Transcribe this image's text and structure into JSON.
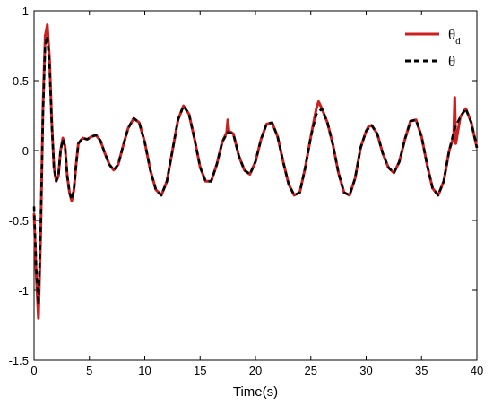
{
  "chart_data": {
    "type": "line",
    "title": "",
    "xlabel": "Time(s)",
    "ylabel": "",
    "xlim": [
      0,
      40
    ],
    "ylim": [
      -1.5,
      1
    ],
    "x_ticks": [
      "0",
      "5",
      "10",
      "15",
      "20",
      "25",
      "30",
      "35",
      "40"
    ],
    "y_ticks": [
      "1",
      "0.5",
      "0",
      "-0.5",
      "-1",
      "-1.5"
    ],
    "grid": false,
    "legend_position": "top-right",
    "series": [
      {
        "name": "θd",
        "legend_main": "θ",
        "legend_sub": "d",
        "color": "#cc1f1f",
        "style": "solid",
        "points": [
          [
            0,
            -0.45
          ],
          [
            0.2,
            -0.9
          ],
          [
            0.4,
            -1.2
          ],
          [
            0.6,
            -0.6
          ],
          [
            0.8,
            0.3
          ],
          [
            1.0,
            0.82
          ],
          [
            1.2,
            0.9
          ],
          [
            1.4,
            0.65
          ],
          [
            1.6,
            0.2
          ],
          [
            1.8,
            -0.12
          ],
          [
            2.0,
            -0.22
          ],
          [
            2.2,
            -0.18
          ],
          [
            2.4,
            0.0
          ],
          [
            2.6,
            0.09
          ],
          [
            2.8,
            0.03
          ],
          [
            3.0,
            -0.18
          ],
          [
            3.2,
            -0.3
          ],
          [
            3.4,
            -0.36
          ],
          [
            3.6,
            -0.28
          ],
          [
            3.8,
            -0.1
          ],
          [
            4.0,
            0.05
          ],
          [
            4.4,
            0.09
          ],
          [
            4.8,
            0.08
          ],
          [
            5.2,
            0.1
          ],
          [
            5.6,
            0.11
          ],
          [
            6.0,
            0.07
          ],
          [
            6.4,
            -0.02
          ],
          [
            6.8,
            -0.1
          ],
          [
            7.2,
            -0.14
          ],
          [
            7.6,
            -0.1
          ],
          [
            8.0,
            0.02
          ],
          [
            8.5,
            0.16
          ],
          [
            9.0,
            0.23
          ],
          [
            9.5,
            0.2
          ],
          [
            10.0,
            0.06
          ],
          [
            10.5,
            -0.14
          ],
          [
            11.0,
            -0.28
          ],
          [
            11.5,
            -0.32
          ],
          [
            12.0,
            -0.22
          ],
          [
            12.5,
            0.0
          ],
          [
            13.0,
            0.22
          ],
          [
            13.5,
            0.32
          ],
          [
            14.0,
            0.26
          ],
          [
            14.5,
            0.08
          ],
          [
            15.0,
            -0.12
          ],
          [
            15.5,
            -0.22
          ],
          [
            16.0,
            -0.22
          ],
          [
            16.5,
            -0.1
          ],
          [
            17.0,
            0.06
          ],
          [
            17.4,
            0.13
          ],
          [
            17.5,
            0.22
          ],
          [
            17.6,
            0.14
          ],
          [
            18.0,
            0.12
          ],
          [
            18.5,
            -0.04
          ],
          [
            19.0,
            -0.14
          ],
          [
            19.5,
            -0.17
          ],
          [
            20.0,
            -0.08
          ],
          [
            20.5,
            0.08
          ],
          [
            21.0,
            0.19
          ],
          [
            21.5,
            0.2
          ],
          [
            22.0,
            0.1
          ],
          [
            22.5,
            -0.08
          ],
          [
            23.0,
            -0.24
          ],
          [
            23.5,
            -0.32
          ],
          [
            24.0,
            -0.3
          ],
          [
            24.5,
            -0.12
          ],
          [
            25.0,
            0.1
          ],
          [
            25.5,
            0.3
          ],
          [
            25.7,
            0.35
          ],
          [
            26.0,
            0.3
          ],
          [
            26.5,
            0.2
          ],
          [
            27.0,
            0.04
          ],
          [
            27.5,
            -0.16
          ],
          [
            28.0,
            -0.3
          ],
          [
            28.5,
            -0.32
          ],
          [
            29.0,
            -0.2
          ],
          [
            29.5,
            0.02
          ],
          [
            30.0,
            0.14
          ],
          [
            30.2,
            0.17
          ],
          [
            30.5,
            0.18
          ],
          [
            31.0,
            0.12
          ],
          [
            31.5,
            -0.02
          ],
          [
            32.0,
            -0.12
          ],
          [
            32.5,
            -0.16
          ],
          [
            33.0,
            -0.08
          ],
          [
            33.5,
            0.08
          ],
          [
            34.0,
            0.21
          ],
          [
            34.5,
            0.22
          ],
          [
            35.0,
            0.1
          ],
          [
            35.5,
            -0.1
          ],
          [
            36.0,
            -0.27
          ],
          [
            36.5,
            -0.32
          ],
          [
            37.0,
            -0.22
          ],
          [
            37.5,
            0.0
          ],
          [
            37.9,
            0.1
          ],
          [
            38.0,
            0.38
          ],
          [
            38.1,
            0.05
          ],
          [
            38.5,
            0.24
          ],
          [
            39.0,
            0.3
          ],
          [
            39.5,
            0.2
          ],
          [
            40.0,
            0.02
          ]
        ]
      },
      {
        "name": "θ",
        "color": "#000000",
        "style": "dashed",
        "points": [
          [
            0,
            -0.4
          ],
          [
            0.2,
            -0.85
          ],
          [
            0.4,
            -1.1
          ],
          [
            0.6,
            -0.55
          ],
          [
            0.8,
            0.25
          ],
          [
            1.0,
            0.75
          ],
          [
            1.2,
            0.82
          ],
          [
            1.4,
            0.6
          ],
          [
            1.6,
            0.18
          ],
          [
            1.8,
            -0.12
          ],
          [
            2.0,
            -0.22
          ],
          [
            2.2,
            -0.18
          ],
          [
            2.4,
            0.0
          ],
          [
            2.6,
            0.08
          ],
          [
            2.8,
            0.03
          ],
          [
            3.0,
            -0.18
          ],
          [
            3.2,
            -0.3
          ],
          [
            3.4,
            -0.35
          ],
          [
            3.6,
            -0.28
          ],
          [
            3.8,
            -0.1
          ],
          [
            4.0,
            0.05
          ],
          [
            4.4,
            0.09
          ],
          [
            4.8,
            0.08
          ],
          [
            5.2,
            0.1
          ],
          [
            5.6,
            0.11
          ],
          [
            6.0,
            0.07
          ],
          [
            6.4,
            -0.02
          ],
          [
            6.8,
            -0.1
          ],
          [
            7.2,
            -0.14
          ],
          [
            7.6,
            -0.1
          ],
          [
            8.0,
            0.02
          ],
          [
            8.5,
            0.16
          ],
          [
            9.0,
            0.23
          ],
          [
            9.5,
            0.2
          ],
          [
            10.0,
            0.06
          ],
          [
            10.5,
            -0.14
          ],
          [
            11.0,
            -0.28
          ],
          [
            11.5,
            -0.32
          ],
          [
            12.0,
            -0.22
          ],
          [
            12.5,
            0.0
          ],
          [
            13.0,
            0.22
          ],
          [
            13.5,
            0.32
          ],
          [
            14.0,
            0.26
          ],
          [
            14.5,
            0.08
          ],
          [
            15.0,
            -0.12
          ],
          [
            15.5,
            -0.22
          ],
          [
            16.0,
            -0.22
          ],
          [
            16.5,
            -0.1
          ],
          [
            17.0,
            0.06
          ],
          [
            17.5,
            0.13
          ],
          [
            18.0,
            0.12
          ],
          [
            18.5,
            -0.04
          ],
          [
            19.0,
            -0.14
          ],
          [
            19.5,
            -0.17
          ],
          [
            20.0,
            -0.08
          ],
          [
            20.5,
            0.08
          ],
          [
            21.0,
            0.19
          ],
          [
            21.5,
            0.2
          ],
          [
            22.0,
            0.1
          ],
          [
            22.5,
            -0.08
          ],
          [
            23.0,
            -0.24
          ],
          [
            23.5,
            -0.32
          ],
          [
            24.0,
            -0.3
          ],
          [
            24.5,
            -0.12
          ],
          [
            25.0,
            0.1
          ],
          [
            25.5,
            0.26
          ],
          [
            26.0,
            0.3
          ],
          [
            26.5,
            0.2
          ],
          [
            27.0,
            0.04
          ],
          [
            27.5,
            -0.16
          ],
          [
            28.0,
            -0.3
          ],
          [
            28.5,
            -0.32
          ],
          [
            29.0,
            -0.2
          ],
          [
            29.5,
            0.02
          ],
          [
            30.0,
            0.14
          ],
          [
            30.5,
            0.18
          ],
          [
            31.0,
            0.12
          ],
          [
            31.5,
            -0.02
          ],
          [
            32.0,
            -0.12
          ],
          [
            32.5,
            -0.16
          ],
          [
            33.0,
            -0.08
          ],
          [
            33.5,
            0.08
          ],
          [
            34.0,
            0.21
          ],
          [
            34.5,
            0.22
          ],
          [
            35.0,
            0.1
          ],
          [
            35.5,
            -0.1
          ],
          [
            36.0,
            -0.27
          ],
          [
            36.5,
            -0.32
          ],
          [
            37.0,
            -0.22
          ],
          [
            37.5,
            0.0
          ],
          [
            38.0,
            0.16
          ],
          [
            38.5,
            0.24
          ],
          [
            39.0,
            0.3
          ],
          [
            39.5,
            0.2
          ],
          [
            40.0,
            0.02
          ]
        ]
      }
    ]
  }
}
